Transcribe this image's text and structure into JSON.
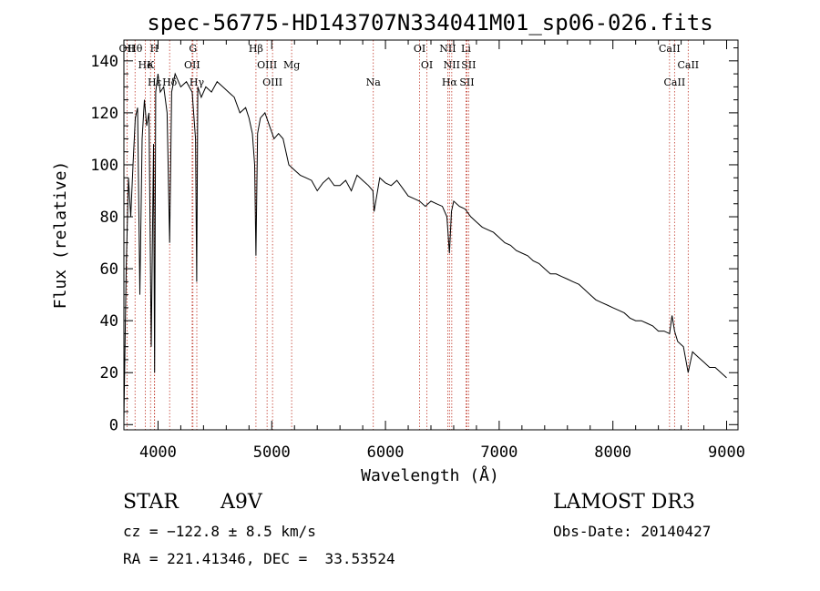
{
  "chart_data": {
    "type": "line",
    "title": "spec-56775-HD143707N334041M01_sp06-026.fits",
    "xlabel": "Wavelength (Å)",
    "ylabel": "Flux (relative)",
    "xlim": [
      3700,
      9100
    ],
    "ylim": [
      -2,
      148
    ],
    "x_ticks": [
      4000,
      5000,
      6000,
      7000,
      8000,
      9000
    ],
    "y_ticks": [
      0,
      20,
      40,
      60,
      80,
      100,
      120,
      140
    ],
    "series": [
      {
        "name": "flux",
        "x": [
          3700,
          3720,
          3740,
          3760,
          3780,
          3800,
          3820,
          3840,
          3860,
          3880,
          3900,
          3920,
          3940,
          3960,
          3970,
          3980,
          4000,
          4020,
          4050,
          4080,
          4102,
          4120,
          4150,
          4200,
          4250,
          4300,
          4330,
          4340,
          4350,
          4380,
          4420,
          4470,
          4520,
          4570,
          4620,
          4670,
          4720,
          4770,
          4800,
          4830,
          4850,
          4861,
          4875,
          4900,
          4940,
          4980,
          5020,
          5060,
          5100,
          5150,
          5200,
          5250,
          5300,
          5350,
          5400,
          5450,
          5500,
          5550,
          5600,
          5650,
          5700,
          5750,
          5800,
          5850,
          5890,
          5900,
          5950,
          6000,
          6050,
          6100,
          6150,
          6200,
          6250,
          6300,
          6350,
          6400,
          6450,
          6500,
          6540,
          6563,
          6580,
          6600,
          6650,
          6700,
          6750,
          6800,
          6850,
          6900,
          6950,
          7000,
          7050,
          7100,
          7150,
          7200,
          7250,
          7300,
          7350,
          7400,
          7450,
          7500,
          7550,
          7600,
          7650,
          7700,
          7750,
          7800,
          7850,
          7900,
          7950,
          8000,
          8050,
          8100,
          8150,
          8200,
          8250,
          8300,
          8350,
          8400,
          8450,
          8498,
          8520,
          8542,
          8570,
          8620,
          8662,
          8700,
          8750,
          8800,
          8850,
          8900,
          8950,
          9000
        ],
        "values": [
          2,
          60,
          95,
          80,
          100,
          118,
          122,
          50,
          110,
          125,
          115,
          120,
          30,
          108,
          20,
          128,
          135,
          128,
          130,
          120,
          70,
          128,
          135,
          130,
          132,
          128,
          110,
          55,
          130,
          126,
          130,
          128,
          132,
          130,
          128,
          126,
          120,
          122,
          118,
          112,
          100,
          65,
          112,
          118,
          120,
          115,
          110,
          112,
          110,
          100,
          98,
          96,
          95,
          94,
          90,
          93,
          95,
          92,
          92,
          94,
          90,
          96,
          94,
          92,
          90,
          82,
          95,
          93,
          92,
          94,
          91,
          88,
          87,
          86,
          84,
          86,
          85,
          84,
          80,
          66,
          82,
          86,
          84,
          83,
          80,
          78,
          76,
          75,
          74,
          72,
          70,
          69,
          67,
          66,
          65,
          63,
          62,
          60,
          58,
          58,
          57,
          56,
          55,
          54,
          52,
          50,
          48,
          47,
          46,
          45,
          44,
          43,
          41,
          40,
          40,
          39,
          38,
          36,
          36,
          35,
          42,
          36,
          32,
          30,
          20,
          28,
          26,
          24,
          22,
          22,
          20,
          18
        ]
      }
    ],
    "line_markers": [
      {
        "label": "Hθ",
        "wl": 3798
      },
      {
        "label": "K",
        "wl": 3934
      },
      {
        "label": "Hδ",
        "wl": 4102
      },
      {
        "label": "OII",
        "wl": 3727
      },
      {
        "label": "He",
        "wl": 3889
      },
      {
        "label": "Hε",
        "wl": 3970
      },
      {
        "label": "H",
        "wl": 3968
      },
      {
        "label": "OII",
        "wl": 4300
      },
      {
        "label": "Hγ",
        "wl": 4341
      },
      {
        "label": "G",
        "wl": 4307
      },
      {
        "label": "OIII",
        "wl": 4959
      },
      {
        "label": "OIII",
        "wl": 5007
      },
      {
        "label": "Hβ",
        "wl": 4861
      },
      {
        "label": "Mg",
        "wl": 5175
      },
      {
        "label": "Na",
        "wl": 5893
      },
      {
        "label": "OI",
        "wl": 6300
      },
      {
        "label": "OI",
        "wl": 6364
      },
      {
        "label": "Hα",
        "wl": 6563
      },
      {
        "label": "NII",
        "wl": 6548
      },
      {
        "label": "NII",
        "wl": 6583
      },
      {
        "label": "SII",
        "wl": 6716
      },
      {
        "label": "Li",
        "wl": 6708
      },
      {
        "label": "SII",
        "wl": 6731
      },
      {
        "label": "CaII",
        "wl": 8542
      },
      {
        "label": "CaII",
        "wl": 8498
      },
      {
        "label": "CaII",
        "wl": 8662
      }
    ],
    "grid": false,
    "legend": "none"
  },
  "info": {
    "obj_class": "STAR",
    "subclass": "A9V",
    "survey": "LAMOST DR3",
    "cz": "cz = −122.8 ± 8.5 km/s",
    "obs_date": "Obs-Date: 20140427",
    "coords": "RA = 221.41346, DEC =  33.53524"
  },
  "colors": {
    "spectrum": "#000000",
    "marker_line": "#c0392b",
    "axis": "#000000"
  }
}
